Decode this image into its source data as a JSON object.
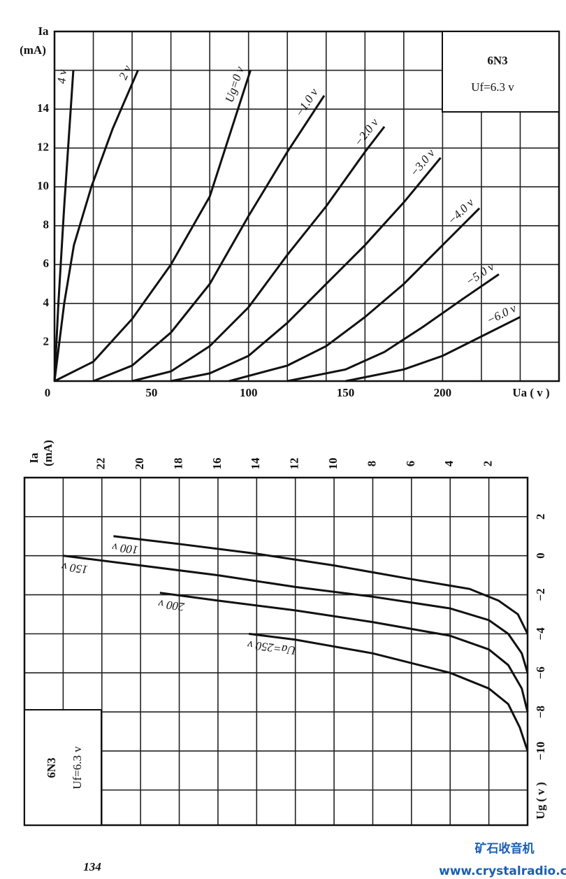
{
  "chart_data": [
    {
      "type": "line",
      "title": "6N3",
      "subtitle": "Uf=6.3 v",
      "y_label": [
        "Ia",
        "(mA)"
      ],
      "x_label": "Ua ( v )",
      "xlim": [
        0,
        260
      ],
      "ylim": [
        0,
        18
      ],
      "xticks": [
        0,
        50,
        100,
        150,
        200
      ],
      "yticks": [
        2,
        4,
        6,
        8,
        10,
        12,
        14
      ],
      "xgrid": [
        20,
        40,
        60,
        80,
        100,
        120,
        140,
        160,
        180,
        200,
        220,
        240
      ],
      "ygrid": [
        2,
        4,
        6,
        8,
        10,
        12,
        14,
        16
      ],
      "swap_axes": false,
      "color": "#111111",
      "series": [
        {
          "name": "4 v",
          "x": [
            0,
            2,
            5,
            9.7
          ],
          "values": [
            0,
            4,
            9,
            16
          ]
        },
        {
          "name": "2 v",
          "x": [
            0,
            5,
            10,
            19,
            30,
            43
          ],
          "values": [
            0,
            4,
            7,
            10,
            13,
            16
          ]
        },
        {
          "name": "Ug=0 v",
          "x": [
            0,
            20,
            40,
            60,
            80,
            101
          ],
          "values": [
            0,
            1,
            3.2,
            6,
            9.5,
            16
          ]
        },
        {
          "name": "−1.0 v",
          "x": [
            20,
            40,
            60,
            80,
            100,
            120,
            139
          ],
          "values": [
            0,
            0.8,
            2.5,
            5,
            8.5,
            11.8,
            14.7
          ]
        },
        {
          "name": "−2.0 v",
          "x": [
            40,
            60,
            80,
            100,
            120,
            140,
            160,
            170
          ],
          "values": [
            0,
            0.5,
            1.8,
            3.8,
            6.5,
            9,
            11.8,
            13.1
          ]
        },
        {
          "name": "−3.0 v",
          "x": [
            60,
            80,
            100,
            120,
            140,
            160,
            180,
            199
          ],
          "values": [
            0,
            0.4,
            1.3,
            3,
            5,
            7,
            9.2,
            11.5
          ]
        },
        {
          "name": "−4.0 v",
          "x": [
            90,
            120,
            140,
            160,
            180,
            200,
            219
          ],
          "values": [
            0,
            0.8,
            1.8,
            3.3,
            5,
            7,
            8.9
          ]
        },
        {
          "name": "−5.0 v",
          "x": [
            120,
            150,
            170,
            190,
            210,
            229
          ],
          "values": [
            0,
            0.6,
            1.5,
            2.8,
            4.2,
            5.5
          ]
        },
        {
          "name": "−6.0 v",
          "x": [
            150,
            180,
            200,
            220,
            240
          ],
          "values": [
            0,
            0.6,
            1.3,
            2.3,
            3.3
          ]
        }
      ]
    },
    {
      "type": "line",
      "title": "6N3",
      "subtitle": "Uf=6.3 v",
      "y_label": [
        "Ia",
        "(mA)"
      ],
      "x_label": "Ug ( v )",
      "xlim": [
        -13.8,
        4
      ],
      "ylim": [
        0,
        26
      ],
      "xticks": [
        2,
        0,
        {
          "value": -2,
          "label": "−2"
        },
        {
          "value": -4,
          "label": "−4"
        },
        {
          "value": -6,
          "label": "−6"
        },
        {
          "value": -8,
          "label": "−8"
        },
        {
          "value": -10,
          "label": "−10"
        }
      ],
      "yticks": [
        2,
        4,
        6,
        8,
        10,
        12,
        14,
        16,
        18,
        20,
        22
      ],
      "xgrid": [
        2,
        0,
        -2,
        -4,
        -6,
        -8,
        -10,
        -12
      ],
      "ygrid": [
        2,
        4,
        6,
        8,
        10,
        12,
        14,
        16,
        18,
        20,
        22,
        24
      ],
      "swap_axes": true,
      "color": "#111111",
      "series": [
        {
          "name": "100 v",
          "x": [
            1,
            0.6,
            0.1,
            -0.5,
            -1.2,
            -1.7,
            -2.3,
            -3,
            -4
          ],
          "values": [
            21.4,
            18,
            14,
            10,
            6,
            3,
            1.5,
            0.5,
            0
          ]
        },
        {
          "name": "150 v",
          "x": [
            0,
            -0.5,
            -1,
            -1.6,
            -2.1,
            -2.7,
            -3.3,
            -4,
            -5,
            -6
          ],
          "values": [
            24,
            20,
            16,
            12,
            8,
            4,
            2,
            1,
            0.3,
            0
          ]
        },
        {
          "name": "200 v",
          "x": [
            -1.9,
            -2.3,
            -2.8,
            -3.4,
            -4.1,
            -4.8,
            -5.6,
            -6.8,
            -8
          ],
          "values": [
            19,
            16,
            12,
            8,
            4,
            2,
            1,
            0.3,
            0
          ]
        },
        {
          "name": "Ua=250 v",
          "x": [
            -4,
            -4.3,
            -5,
            -6,
            -6.8,
            -7.6,
            -8.8,
            -10
          ],
          "values": [
            14.4,
            12,
            8,
            4,
            2,
            1,
            0.4,
            0
          ]
        }
      ]
    }
  ],
  "page_number": "134",
  "watermark": [
    "矿石收音机",
    "www.crystalradio.cn"
  ]
}
